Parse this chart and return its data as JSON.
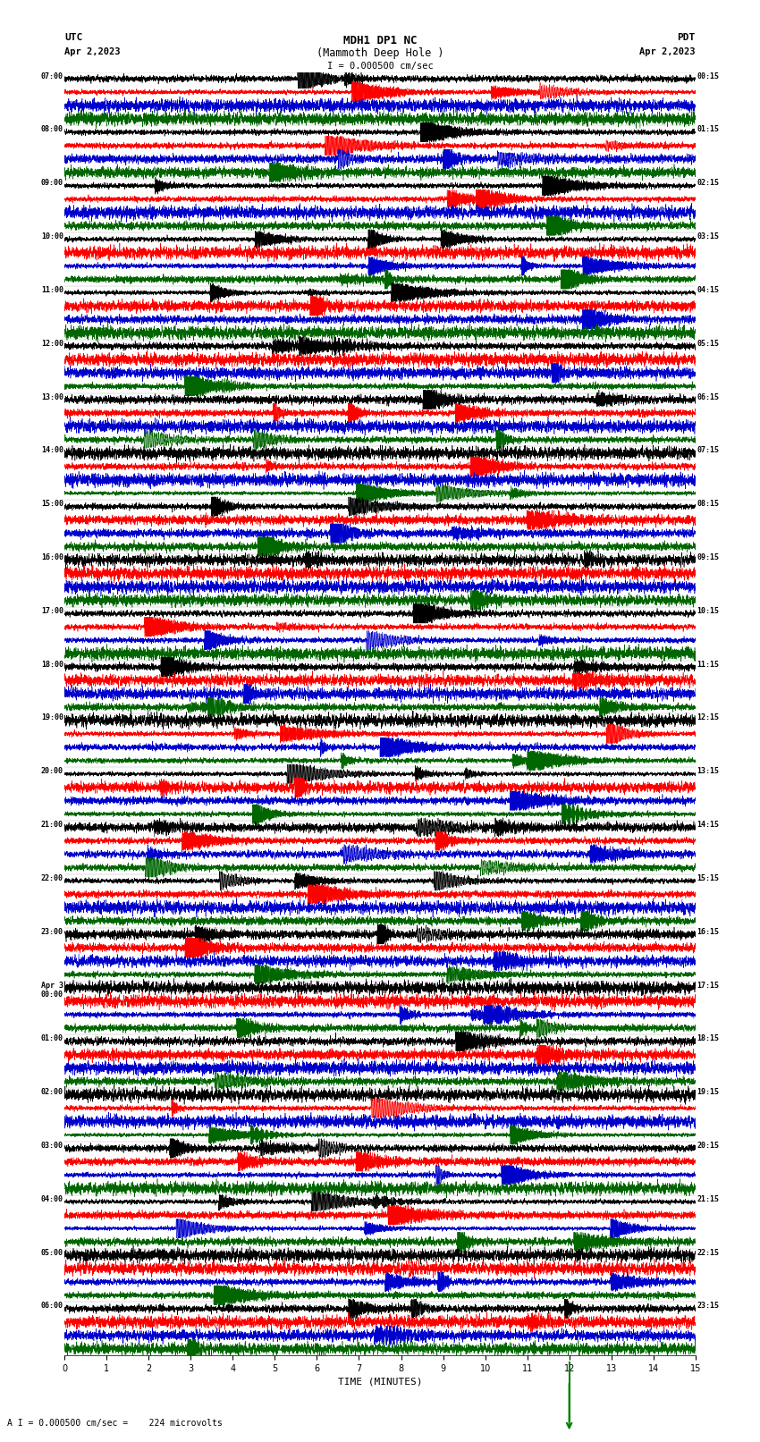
{
  "title_line1": "MDH1 DP1 NC",
  "title_line2": "(Mammoth Deep Hole )",
  "scale_text": "I = 0.000500 cm/sec",
  "bottom_label": "TIME (MINUTES)",
  "bottom_note": "A I = 0.000500 cm/sec =    224 microvolts",
  "utc_label": "UTC",
  "utc_date": "Apr 2,2023",
  "pdt_label": "PDT",
  "pdt_date": "Apr 2,2023",
  "background_color": "#ffffff",
  "trace_colors": [
    "#000000",
    "#ff0000",
    "#0000cc",
    "#006600"
  ],
  "xlim": [
    0,
    15
  ],
  "xticks": [
    0,
    1,
    2,
    3,
    4,
    5,
    6,
    7,
    8,
    9,
    10,
    11,
    12,
    13,
    14,
    15
  ],
  "utc_times": [
    "07:00",
    "08:00",
    "09:00",
    "10:00",
    "11:00",
    "12:00",
    "13:00",
    "14:00",
    "15:00",
    "16:00",
    "17:00",
    "18:00",
    "19:00",
    "20:00",
    "21:00",
    "22:00",
    "23:00",
    "Apr 3\n00:00",
    "01:00",
    "02:00",
    "03:00",
    "04:00",
    "05:00",
    "06:00"
  ],
  "pdt_times": [
    "00:15",
    "01:15",
    "02:15",
    "03:15",
    "04:15",
    "05:15",
    "06:15",
    "07:15",
    "08:15",
    "09:15",
    "10:15",
    "11:15",
    "12:15",
    "13:15",
    "14:15",
    "15:15",
    "16:15",
    "17:15",
    "18:15",
    "19:15",
    "20:15",
    "21:15",
    "22:15",
    "23:15"
  ],
  "n_rows": 24,
  "traces_per_row": 4,
  "fig_width": 8.5,
  "fig_height": 16.13,
  "dpi": 100
}
